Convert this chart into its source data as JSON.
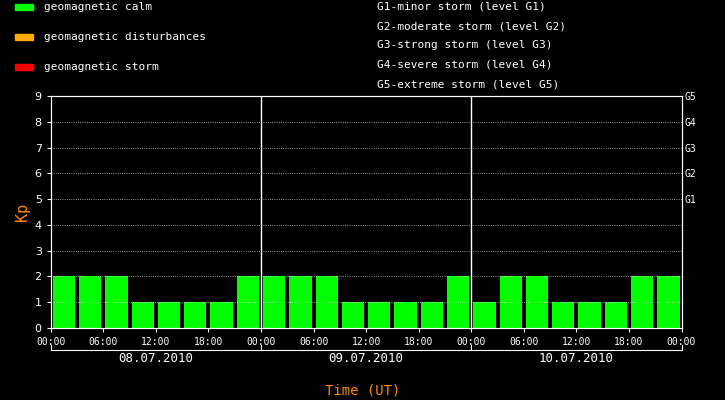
{
  "background_color": "#000000",
  "bar_color_calm": "#00ff00",
  "bar_color_disturb": "#ffaa00",
  "bar_color_storm": "#ff0000",
  "text_color": "#ffffff",
  "xlabel_color": "#ff8800",
  "kp_label_color": "#ff8800",
  "days": [
    "08.07.2010",
    "09.07.2010",
    "10.07.2010"
  ],
  "bar_values": [
    [
      2,
      2,
      2,
      1,
      1,
      1,
      1,
      2
    ],
    [
      2,
      2,
      2,
      1,
      1,
      1,
      1,
      2
    ],
    [
      1,
      2,
      2,
      1,
      1,
      1,
      2,
      2
    ]
  ],
  "ylim": [
    0,
    9
  ],
  "yticks": [
    0,
    1,
    2,
    3,
    4,
    5,
    6,
    7,
    8,
    9
  ],
  "ylabel": "Kp",
  "xlabel": "Time (UT)",
  "g_labels": [
    "G5",
    "G4",
    "G3",
    "G2",
    "G1"
  ],
  "g_levels": [
    9,
    8,
    7,
    6,
    5
  ],
  "legend_items": [
    {
      "label": "geomagnetic calm",
      "color": "#00ff00"
    },
    {
      "label": "geomagnetic disturbances",
      "color": "#ffaa00"
    },
    {
      "label": "geomagnetic storm",
      "color": "#ff0000"
    }
  ],
  "storm_legend": [
    "G1-minor storm (level G1)",
    "G2-moderate storm (level G2)",
    "G3-strong storm (level G3)",
    "G4-severe storm (level G4)",
    "G5-extreme storm (level G5)"
  ],
  "font_family": "monospace",
  "font_size": 8,
  "bar_width": 0.85,
  "time_labels": [
    "00:00",
    "06:00",
    "12:00",
    "18:00"
  ]
}
